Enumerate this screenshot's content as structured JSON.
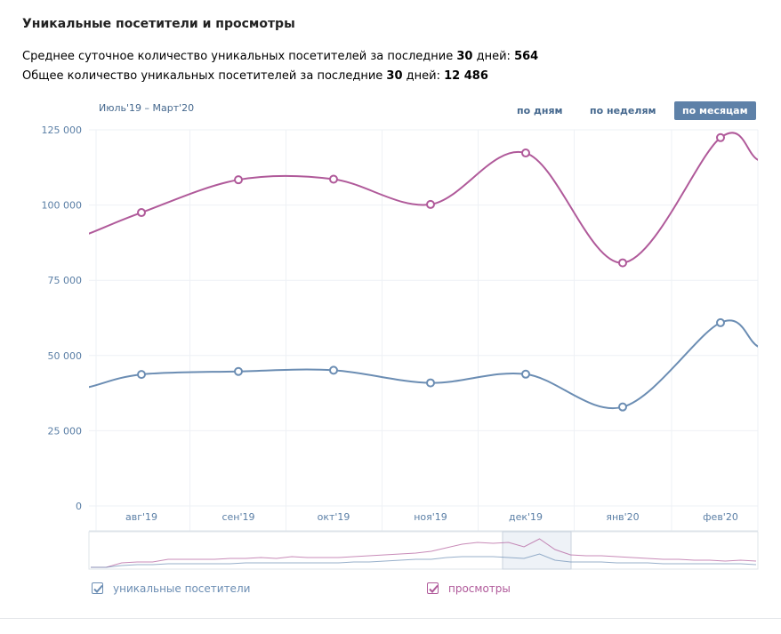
{
  "header": {
    "title": "Уникальные посетители и просмотры",
    "avg_prefix": "Среднее суточное количество уникальных посетителей за последние ",
    "avg_days": "30",
    "avg_mid": " дней: ",
    "avg_value": "564",
    "total_prefix": "Общее количество уникальных посетителей за последние ",
    "total_days": "30",
    "total_mid": " дней: ",
    "total_value": "12 486"
  },
  "controls": {
    "period": "Июль'19 – Март'20",
    "by_days": "по дням",
    "by_weeks": "по неделям",
    "by_months": "по месяцам",
    "active": "by_months"
  },
  "colors": {
    "views": "#b05a9a",
    "visitors": "#6b8db3",
    "grid": "#eef1f5",
    "plot_bg": "#ffffff",
    "axis_text": "#5b7fa6",
    "active_button": "#5e81a8"
  },
  "chart_data": {
    "type": "line",
    "categories": [
      "авг'19",
      "сен'19",
      "окт'19",
      "ноя'19",
      "дек'19",
      "янв'20",
      "фев'20"
    ],
    "yticks": [
      "125 000",
      "100 000",
      "75 000",
      "50 000",
      "25 000",
      "0"
    ],
    "ylim": [
      0,
      125000
    ],
    "grid": true,
    "legend": "bottom",
    "series": [
      {
        "name": "уникальные посетители",
        "color": "#6b8db3",
        "values": [
          43700,
          44700,
          45100,
          40900,
          43800,
          32900,
          60900
        ],
        "edge_start": 39500,
        "edge_end": 53000
      },
      {
        "name": "просмотры",
        "color": "#b05a9a",
        "values": [
          97500,
          108400,
          108600,
          100200,
          117300,
          80800,
          122400
        ],
        "edge_start": 90500,
        "edge_end": 115000
      }
    ]
  }
}
